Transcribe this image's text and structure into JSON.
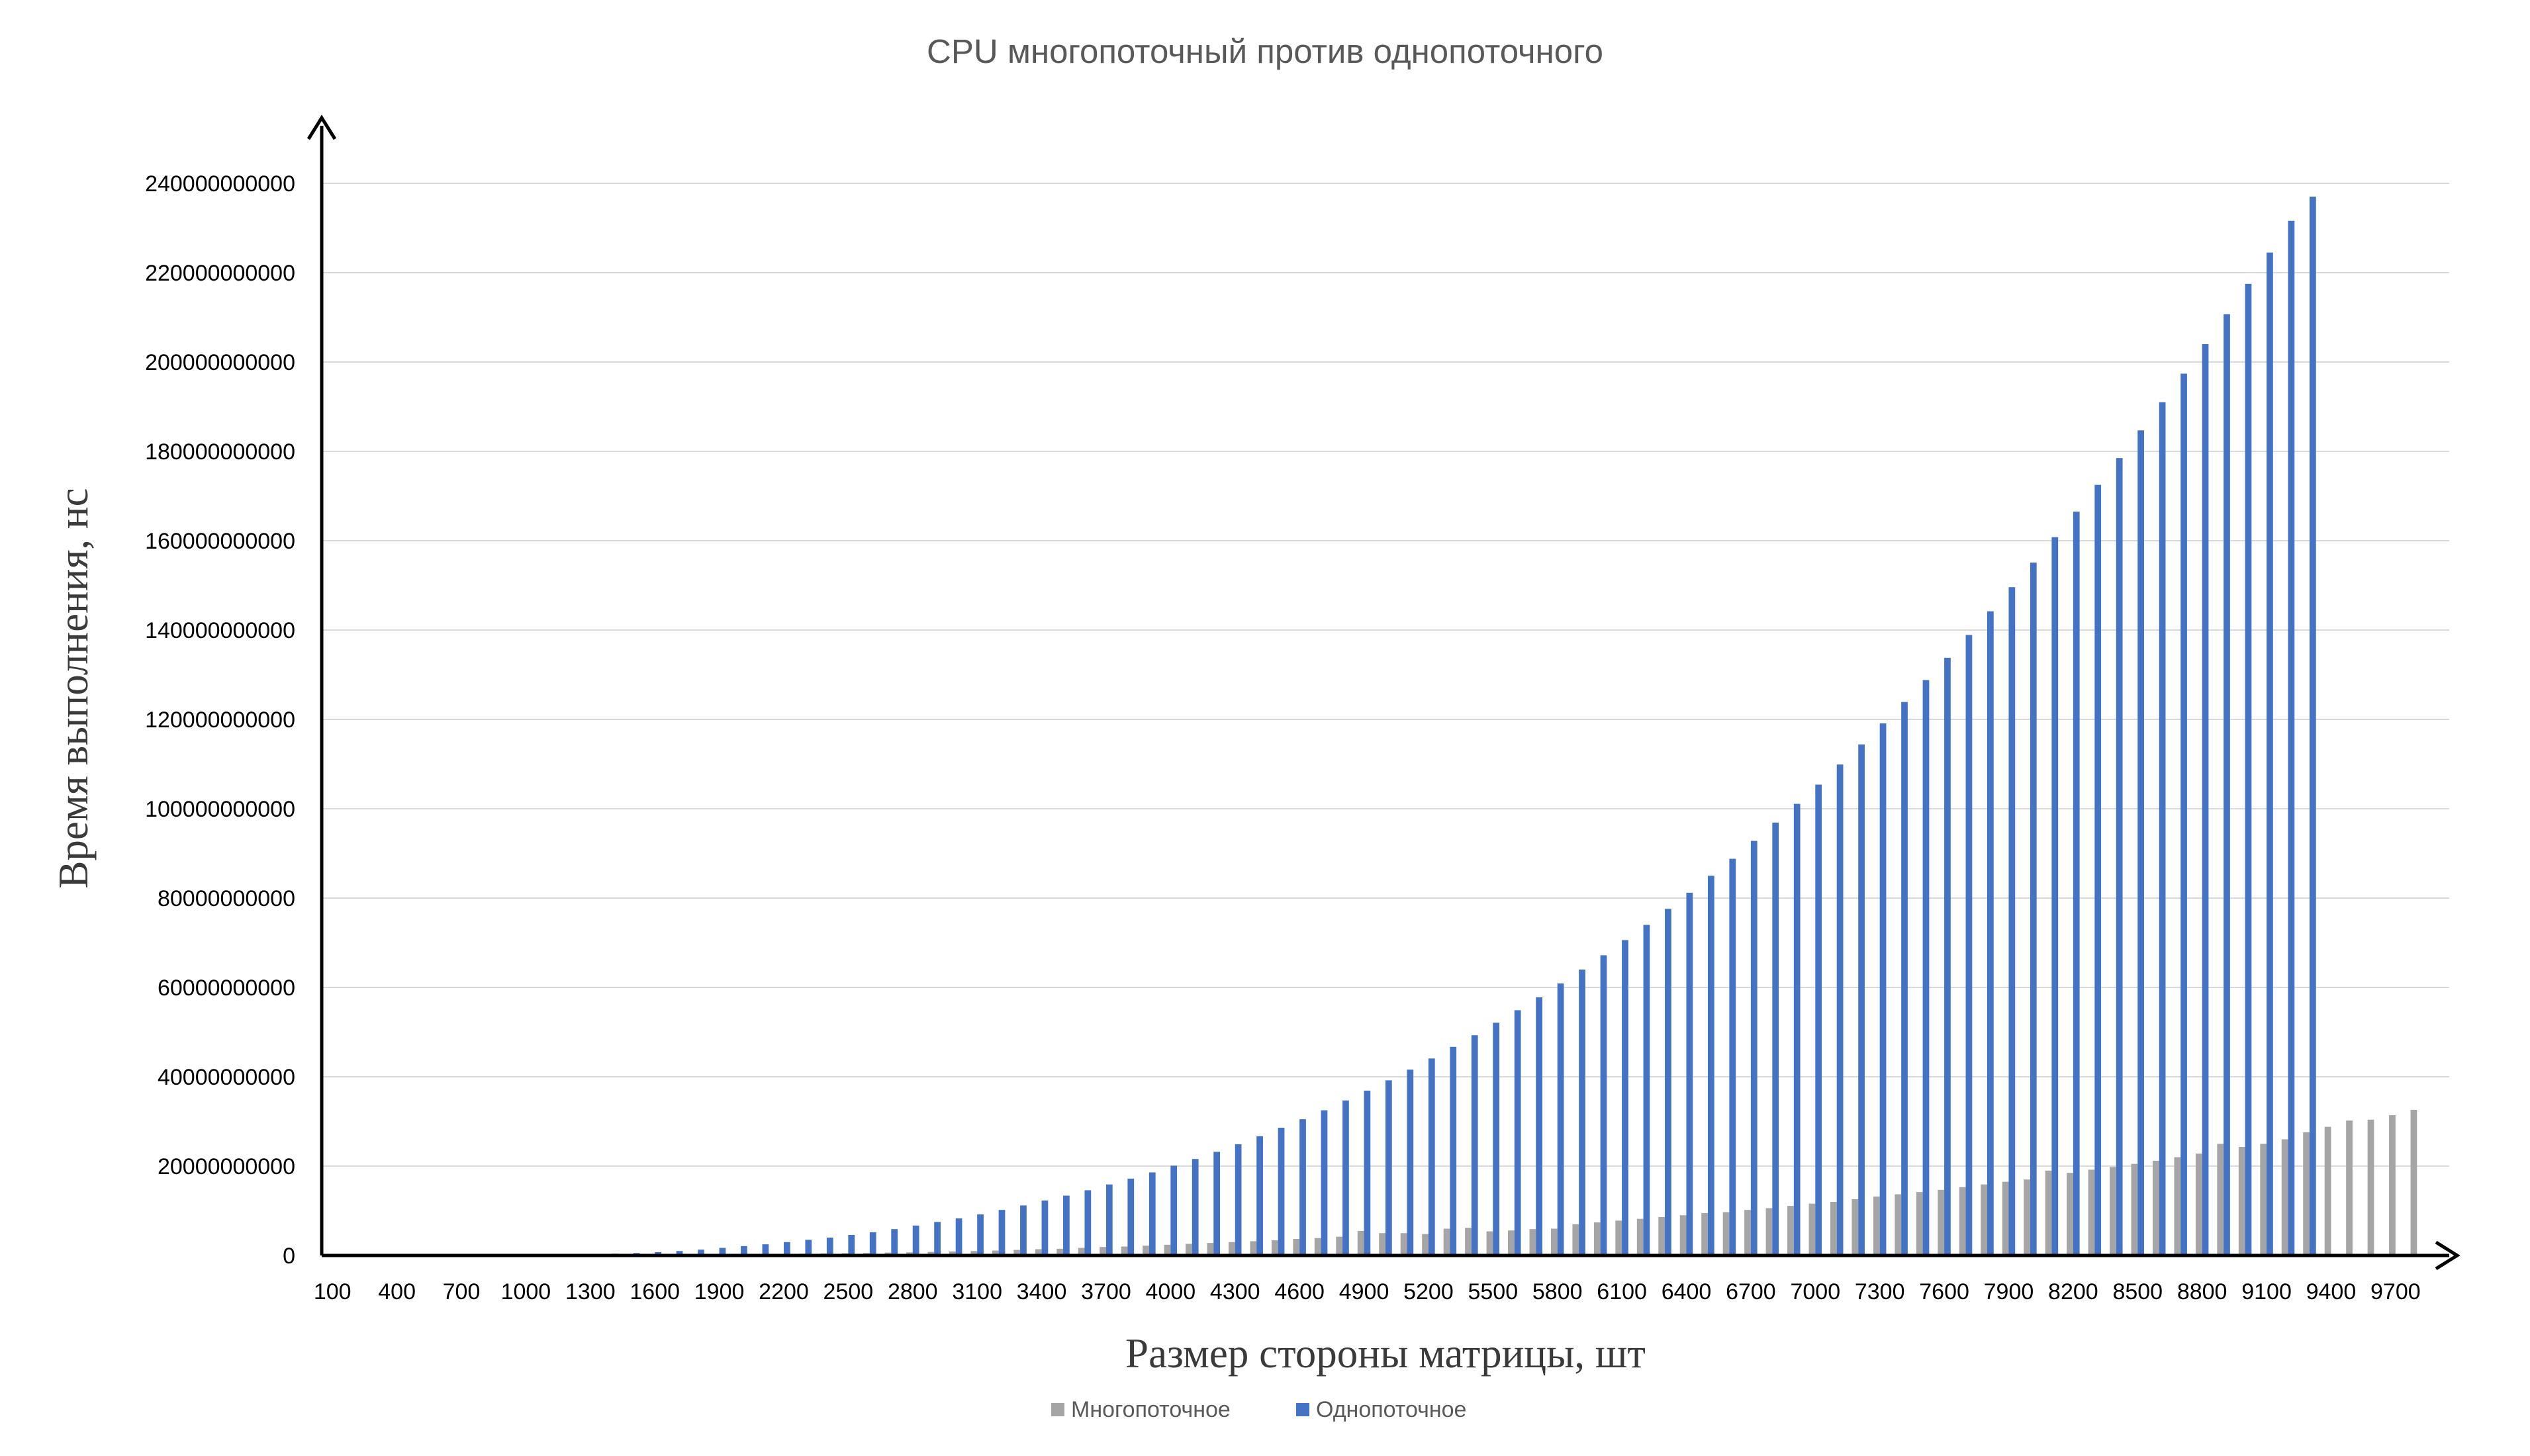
{
  "chart_data": {
    "type": "bar",
    "title": "CPU многопоточный против однопоточного",
    "xlabel": "Размер стороны матрицы, шт",
    "ylabel": "Время выполнения, нс",
    "ylim": [
      0,
      240000000000
    ],
    "yticks": [
      0,
      20000000000,
      40000000000,
      60000000000,
      80000000000,
      100000000000,
      120000000000,
      140000000000,
      160000000000,
      180000000000,
      200000000000,
      220000000000,
      240000000000
    ],
    "categories": [
      100,
      200,
      300,
      400,
      500,
      600,
      700,
      800,
      900,
      1000,
      1100,
      1200,
      1300,
      1400,
      1500,
      1600,
      1700,
      1800,
      1900,
      2000,
      2100,
      2200,
      2300,
      2400,
      2500,
      2600,
      2700,
      2800,
      2900,
      3000,
      3100,
      3200,
      3300,
      3400,
      3500,
      3600,
      3700,
      3800,
      3900,
      4000,
      4100,
      4200,
      4300,
      4400,
      4500,
      4600,
      4700,
      4800,
      4900,
      5000,
      5100,
      5200,
      5300,
      5400,
      5500,
      5600,
      5700,
      5800,
      5900,
      6000,
      6100,
      6200,
      6300,
      6400,
      6500,
      6600,
      6700,
      6800,
      6900,
      7000,
      7100,
      7200,
      7300,
      7400,
      7500,
      7600,
      7700,
      7800,
      7900,
      8000,
      8100,
      8200,
      8300,
      8400,
      8500,
      8600,
      8700,
      8800,
      8900,
      9000,
      9100,
      9200,
      9300,
      9400,
      9500,
      9600,
      9700,
      9800,
      9900
    ],
    "xtick_labels": [
      "100",
      "400",
      "700",
      "1000",
      "1300",
      "1600",
      "1900",
      "2200",
      "2500",
      "2800",
      "3100",
      "3400",
      "3700",
      "4000",
      "4300",
      "4600",
      "4900",
      "5200",
      "5500",
      "5800",
      "6100",
      "6400",
      "6700",
      "7000",
      "7300",
      "7600",
      "7900",
      "8200",
      "8500",
      "8800",
      "9100",
      "9400",
      "9700"
    ],
    "grid": true,
    "legend_position": "bottom",
    "series": [
      {
        "name": "Многопоточное",
        "color": "#a5a5a5",
        "values": [
          0,
          0,
          0,
          0,
          0,
          0,
          0,
          0,
          0,
          0,
          0,
          0,
          0,
          0,
          100000000,
          100000000,
          150000000,
          150000000,
          200000000,
          250000000,
          300000000,
          350000000,
          400000000,
          450000000,
          500000000,
          550000000,
          650000000,
          700000000,
          800000000,
          900000000,
          1000000000,
          1100000000,
          1250000000,
          1400000000,
          1500000000,
          1700000000,
          1900000000,
          2000000000,
          2200000000,
          2400000000,
          2600000000,
          2800000000,
          3000000000,
          3200000000,
          3400000000,
          3700000000,
          3900000000,
          4200000000,
          5500000000,
          5000000000,
          5000000000,
          4800000000,
          6000000000,
          6200000000,
          5400000000,
          5600000000,
          5900000000,
          6000000000,
          7000000000,
          7400000000,
          7800000000,
          8200000000,
          8600000000,
          9000000000,
          9500000000,
          9700000000,
          10200000000,
          10600000000,
          11100000000,
          11600000000,
          12000000000,
          12600000000,
          13200000000,
          13700000000,
          14200000000,
          14700000000,
          15300000000,
          15900000000,
          16500000000,
          17000000000,
          19000000000,
          18500000000,
          19200000000,
          19800000000,
          20500000000,
          21200000000,
          22000000000,
          22800000000,
          25000000000,
          24300000000,
          25000000000,
          26000000000,
          27600000000,
          28800000000,
          30200000000,
          30400000000,
          31400000000,
          32600000000,
          0
        ]
      },
      {
        "name": "Однопоточное",
        "color": "#4472c4",
        "values": [
          0,
          0,
          0,
          0,
          0,
          0,
          0,
          0,
          0,
          0,
          0,
          0,
          300000000,
          400000000,
          550000000,
          750000000,
          1000000000,
          1300000000,
          1700000000,
          2100000000,
          2500000000,
          3000000000,
          3500000000,
          4000000000,
          4600000000,
          5200000000,
          5900000000,
          6700000000,
          7500000000,
          8300000000,
          9200000000,
          10200000000,
          11200000000,
          12300000000,
          13400000000,
          14600000000,
          15900000000,
          17200000000,
          18600000000,
          20100000000,
          21600000000,
          23200000000,
          24900000000,
          26700000000,
          28600000000,
          30500000000,
          32500000000,
          34700000000,
          36900000000,
          39200000000,
          41600000000,
          44100000000,
          46700000000,
          49300000000,
          52100000000,
          54900000000,
          57800000000,
          60900000000,
          64000000000,
          67200000000,
          70600000000,
          74000000000,
          77600000000,
          81200000000,
          85000000000,
          88800000000,
          92800000000,
          96900000000,
          101100000000,
          105400000000,
          109900000000,
          114400000000,
          119100000000,
          123900000000,
          128800000000,
          133800000000,
          138900000000,
          144200000000,
          149600000000,
          155100000000,
          160800000000,
          166500000000,
          172500000000,
          178500000000,
          184700000000,
          191000000000,
          197400000000,
          204000000000,
          210700000000,
          217500000000,
          224500000000,
          231600000000,
          237000000000,
          0,
          0,
          0,
          0,
          0,
          0
        ]
      }
    ]
  }
}
